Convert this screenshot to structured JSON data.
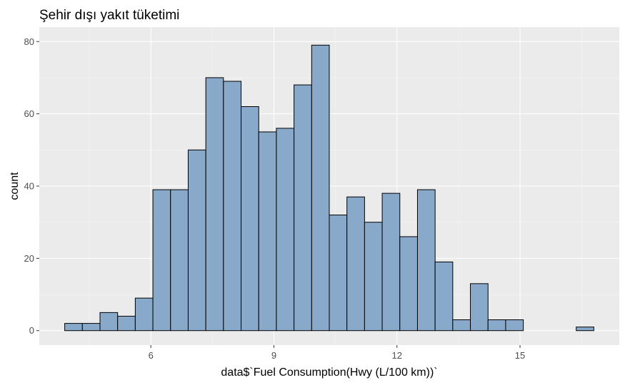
{
  "chart_data": {
    "type": "bar",
    "subtype": "histogram",
    "title": "Şehir dışı yakıt tüketimi",
    "xlabel": "data$`Fuel Consumption(Hwy (L/100 km))`",
    "ylabel": "count",
    "bin_width": 0.43,
    "bins": [
      {
        "x0": 3.9,
        "x1": 4.33,
        "count": 2
      },
      {
        "x0": 4.33,
        "x1": 4.76,
        "count": 2
      },
      {
        "x0": 4.76,
        "x1": 5.19,
        "count": 5
      },
      {
        "x0": 5.19,
        "x1": 5.62,
        "count": 4
      },
      {
        "x0": 5.62,
        "x1": 6.05,
        "count": 9
      },
      {
        "x0": 6.05,
        "x1": 6.48,
        "count": 39
      },
      {
        "x0": 6.48,
        "x1": 6.91,
        "count": 39
      },
      {
        "x0": 6.91,
        "x1": 7.34,
        "count": 50
      },
      {
        "x0": 7.34,
        "x1": 7.77,
        "count": 70
      },
      {
        "x0": 7.77,
        "x1": 8.2,
        "count": 69
      },
      {
        "x0": 8.2,
        "x1": 8.63,
        "count": 62
      },
      {
        "x0": 8.63,
        "x1": 9.06,
        "count": 55
      },
      {
        "x0": 9.06,
        "x1": 9.49,
        "count": 56
      },
      {
        "x0": 9.49,
        "x1": 9.92,
        "count": 68
      },
      {
        "x0": 9.92,
        "x1": 10.35,
        "count": 79
      },
      {
        "x0": 10.35,
        "x1": 10.78,
        "count": 32
      },
      {
        "x0": 10.78,
        "x1": 11.21,
        "count": 37
      },
      {
        "x0": 11.21,
        "x1": 11.64,
        "count": 30
      },
      {
        "x0": 11.64,
        "x1": 12.07,
        "count": 38
      },
      {
        "x0": 12.07,
        "x1": 12.5,
        "count": 26
      },
      {
        "x0": 12.5,
        "x1": 12.93,
        "count": 39
      },
      {
        "x0": 12.93,
        "x1": 13.36,
        "count": 19
      },
      {
        "x0": 13.36,
        "x1": 13.79,
        "count": 3
      },
      {
        "x0": 13.79,
        "x1": 14.22,
        "count": 13
      },
      {
        "x0": 14.22,
        "x1": 14.65,
        "count": 3
      },
      {
        "x0": 14.65,
        "x1": 15.08,
        "count": 3
      },
      {
        "x0": 15.08,
        "x1": 15.51,
        "count": 0
      },
      {
        "x0": 15.51,
        "x1": 15.94,
        "count": 0
      },
      {
        "x0": 15.94,
        "x1": 16.37,
        "count": 0
      },
      {
        "x0": 16.37,
        "x1": 16.8,
        "count": 1
      }
    ],
    "xlim": [
      3.28,
      17.42
    ],
    "ylim": [
      -4,
      84
    ],
    "x_ticks": [
      6,
      9,
      12,
      15
    ],
    "y_ticks": [
      0,
      20,
      40,
      60,
      80
    ],
    "grid": true,
    "legend": "none",
    "colors": {
      "bar_fill": "#88a9c9",
      "bar_outline": "#000000",
      "panel_background": "#ebebeb",
      "grid_major": "#ffffff",
      "grid_minor": "#f5f5f5"
    }
  }
}
